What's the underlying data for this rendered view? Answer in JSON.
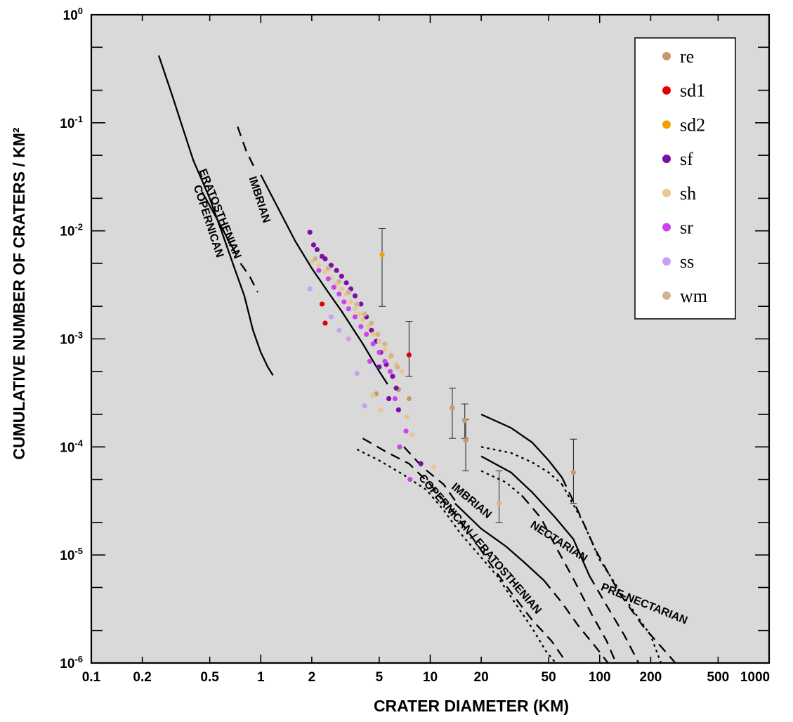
{
  "chart_data": {
    "type": "scatter",
    "xlabel": "CRATER DIAMETER (KM)",
    "ylabel": "CUMULATIVE NUMBER OF CRATERS / KM²",
    "x_scale": "log",
    "y_scale": "log",
    "xlim": [
      0.1,
      1000
    ],
    "ylim": [
      1e-06,
      1
    ],
    "x_ticks": [
      {
        "value": 0.1,
        "label": "0.1"
      },
      {
        "value": 0.2,
        "label": "0.2"
      },
      {
        "value": 0.5,
        "label": "0.5"
      },
      {
        "value": 1,
        "label": "1"
      },
      {
        "value": 2,
        "label": "2"
      },
      {
        "value": 5,
        "label": "5"
      },
      {
        "value": 10,
        "label": "10"
      },
      {
        "value": 20,
        "label": "20"
      },
      {
        "value": 50,
        "label": "50"
      },
      {
        "value": 100,
        "label": "100"
      },
      {
        "value": 200,
        "label": "200"
      },
      {
        "value": 500,
        "label": "500"
      },
      {
        "value": 1000,
        "label": "1000"
      }
    ],
    "y_ticks": [
      {
        "value": 1,
        "base": "10",
        "exp": "0"
      },
      {
        "value": 0.1,
        "base": "10",
        "exp": "-1"
      },
      {
        "value": 0.01,
        "base": "10",
        "exp": "-2"
      },
      {
        "value": 0.001,
        "base": "10",
        "exp": "-3"
      },
      {
        "value": 0.0001,
        "base": "10",
        "exp": "-4"
      },
      {
        "value": 1e-05,
        "base": "10",
        "exp": "-5"
      },
      {
        "value": 1e-06,
        "base": "10",
        "exp": "-6"
      }
    ],
    "grid": false,
    "legend_position": "top-right",
    "plot_background": "#d9d9d9",
    "series": [
      {
        "name": "re",
        "color": "#c49a6c",
        "points": [
          {
            "x": 13.5,
            "y": 0.00023,
            "lo": 0.00012,
            "hi": 0.00035
          },
          {
            "x": 16,
            "y": 0.000175,
            "lo": 0.00012,
            "hi": 0.00025
          },
          {
            "x": 16.2,
            "y": 0.000115,
            "lo": 6e-05,
            "hi": 0.00018
          },
          {
            "x": 70,
            "y": 5.8e-05,
            "lo": 3e-05,
            "hi": 0.000118
          },
          {
            "x": 4.8,
            "y": 0.00031
          },
          {
            "x": 6.5,
            "y": 0.00034
          },
          {
            "x": 7.5,
            "y": 0.00028
          }
        ]
      },
      {
        "name": "sd1",
        "color": "#e00000",
        "points": [
          {
            "x": 2.3,
            "y": 0.0021
          },
          {
            "x": 2.4,
            "y": 0.0014
          },
          {
            "x": 7.5,
            "y": 0.00071,
            "lo": 0.00045,
            "hi": 0.00145
          }
        ]
      },
      {
        "name": "sd2",
        "color": "#f5a000",
        "points": [
          {
            "x": 5.2,
            "y": 0.006,
            "lo": 0.002,
            "hi": 0.0105
          }
        ]
      },
      {
        "name": "sf",
        "color": "#7b0ea8",
        "points": [
          {
            "x": 1.95,
            "y": 0.0097
          },
          {
            "x": 2.05,
            "y": 0.0074
          },
          {
            "x": 2.15,
            "y": 0.0067
          },
          {
            "x": 2.3,
            "y": 0.0058
          },
          {
            "x": 2.4,
            "y": 0.0055
          },
          {
            "x": 2.6,
            "y": 0.0048
          },
          {
            "x": 2.8,
            "y": 0.0043
          },
          {
            "x": 3.0,
            "y": 0.0038
          },
          {
            "x": 3.2,
            "y": 0.0033
          },
          {
            "x": 3.4,
            "y": 0.0029
          },
          {
            "x": 3.6,
            "y": 0.0025
          },
          {
            "x": 3.9,
            "y": 0.0021
          },
          {
            "x": 4.2,
            "y": 0.0016
          },
          {
            "x": 4.5,
            "y": 0.0012
          },
          {
            "x": 4.8,
            "y": 0.00095
          },
          {
            "x": 5.1,
            "y": 0.00075
          },
          {
            "x": 5.5,
            "y": 0.00058
          },
          {
            "x": 6.0,
            "y": 0.00045
          },
          {
            "x": 6.3,
            "y": 0.00035
          },
          {
            "x": 5.0,
            "y": 0.00055
          },
          {
            "x": 5.7,
            "y": 0.00028
          },
          {
            "x": 6.5,
            "y": 0.00022
          },
          {
            "x": 8.8,
            "y": 7e-05
          }
        ]
      },
      {
        "name": "sh",
        "color": "#e8c88e",
        "points": [
          {
            "x": 2.0,
            "y": 0.0052
          },
          {
            "x": 2.2,
            "y": 0.0048
          },
          {
            "x": 2.4,
            "y": 0.0042
          },
          {
            "x": 2.6,
            "y": 0.0037
          },
          {
            "x": 2.8,
            "y": 0.0032
          },
          {
            "x": 3.0,
            "y": 0.0029
          },
          {
            "x": 3.2,
            "y": 0.0026
          },
          {
            "x": 3.4,
            "y": 0.0022
          },
          {
            "x": 3.6,
            "y": 0.0019
          },
          {
            "x": 3.8,
            "y": 0.0017
          },
          {
            "x": 4.0,
            "y": 0.0015
          },
          {
            "x": 4.3,
            "y": 0.0013
          },
          {
            "x": 4.6,
            "y": 0.0011
          },
          {
            "x": 5.0,
            "y": 0.00095
          },
          {
            "x": 5.4,
            "y": 0.0008
          },
          {
            "x": 5.8,
            "y": 0.00068
          },
          {
            "x": 6.3,
            "y": 0.00058
          },
          {
            "x": 6.8,
            "y": 0.0005
          },
          {
            "x": 7.3,
            "y": 0.00019
          },
          {
            "x": 7.8,
            "y": 0.00013
          },
          {
            "x": 10.5,
            "y": 6.5e-05
          },
          {
            "x": 5.1,
            "y": 0.00022
          },
          {
            "x": 4.6,
            "y": 0.0003
          }
        ]
      },
      {
        "name": "sr",
        "color": "#cc44ee",
        "points": [
          {
            "x": 2.2,
            "y": 0.0043
          },
          {
            "x": 2.5,
            "y": 0.0036
          },
          {
            "x": 2.7,
            "y": 0.003
          },
          {
            "x": 2.9,
            "y": 0.0026
          },
          {
            "x": 3.1,
            "y": 0.0022
          },
          {
            "x": 3.3,
            "y": 0.0019
          },
          {
            "x": 3.6,
            "y": 0.0016
          },
          {
            "x": 3.9,
            "y": 0.0013
          },
          {
            "x": 4.2,
            "y": 0.0011
          },
          {
            "x": 4.6,
            "y": 0.0009
          },
          {
            "x": 5.0,
            "y": 0.00075
          },
          {
            "x": 5.4,
            "y": 0.00062
          },
          {
            "x": 5.8,
            "y": 0.0005
          },
          {
            "x": 6.2,
            "y": 0.00028
          },
          {
            "x": 6.6,
            "y": 0.0001
          },
          {
            "x": 7.2,
            "y": 0.00014
          },
          {
            "x": 7.6,
            "y": 5e-05
          },
          {
            "x": 4.4,
            "y": 0.00062
          }
        ]
      },
      {
        "name": "ss",
        "color": "#c9a0f5",
        "points": [
          {
            "x": 1.95,
            "y": 0.0029
          },
          {
            "x": 2.6,
            "y": 0.0016
          },
          {
            "x": 2.9,
            "y": 0.0012
          },
          {
            "x": 3.3,
            "y": 0.001
          },
          {
            "x": 3.7,
            "y": 0.00048
          },
          {
            "x": 4.1,
            "y": 0.00024
          }
        ]
      },
      {
        "name": "wm",
        "color": "#d1b48e",
        "points": [
          {
            "x": 2.1,
            "y": 0.0055
          },
          {
            "x": 2.5,
            "y": 0.0045
          },
          {
            "x": 2.9,
            "y": 0.0034
          },
          {
            "x": 3.3,
            "y": 0.0027
          },
          {
            "x": 3.7,
            "y": 0.0021
          },
          {
            "x": 4.1,
            "y": 0.0017
          },
          {
            "x": 4.5,
            "y": 0.0014
          },
          {
            "x": 4.9,
            "y": 0.0011
          },
          {
            "x": 5.4,
            "y": 0.0009
          },
          {
            "x": 5.9,
            "y": 0.0007
          },
          {
            "x": 6.4,
            "y": 0.00055
          },
          {
            "x": 25.5,
            "y": 3e-05,
            "lo": 2e-05,
            "hi": 6e-05
          }
        ]
      }
    ],
    "reference_curves": [
      {
        "name": "COPERNICAN",
        "style": "solid",
        "points": [
          [
            0.25,
            0.42
          ],
          [
            0.3,
            0.18
          ],
          [
            0.35,
            0.085
          ],
          [
            0.4,
            0.045
          ],
          [
            0.5,
            0.02
          ],
          [
            0.6,
            0.009
          ],
          [
            0.7,
            0.0045
          ],
          [
            0.8,
            0.0025
          ],
          [
            0.9,
            0.0012
          ],
          [
            1.0,
            0.00075
          ],
          [
            1.1,
            0.00055
          ],
          [
            1.18,
            0.00046
          ]
        ]
      },
      {
        "name": "ERATOSTHENIAN",
        "style": "solid",
        "points": [
          [
            0.45,
            0.023
          ],
          [
            0.55,
            0.013
          ],
          [
            0.65,
            0.008
          ],
          [
            0.72,
            0.006
          ]
        ]
      },
      {
        "name": "ERATOSTHENIAN",
        "style": "dashed",
        "points": [
          [
            0.76,
            0.005
          ],
          [
            0.86,
            0.0038
          ],
          [
            0.96,
            0.0027
          ]
        ]
      },
      {
        "name": "IMBRIAN",
        "style": "dashed",
        "points": [
          [
            0.73,
            0.092
          ],
          [
            0.82,
            0.055
          ],
          [
            0.92,
            0.038
          ]
        ]
      },
      {
        "name": "IMBRIAN",
        "style": "solid",
        "points": [
          [
            1.0,
            0.033
          ],
          [
            1.3,
            0.015
          ],
          [
            1.6,
            0.008
          ],
          [
            2.0,
            0.0045
          ],
          [
            2.5,
            0.0027
          ],
          [
            3.0,
            0.0018
          ],
          [
            4.0,
            0.0009
          ],
          [
            5.0,
            0.0005
          ],
          [
            5.6,
            0.00038
          ]
        ]
      },
      {
        "name": "PRE-NECTARIAN",
        "style": "solid",
        "points": [
          [
            20,
            0.0002
          ],
          [
            30,
            0.00015
          ],
          [
            40,
            0.00011
          ],
          [
            50,
            7.5e-05
          ],
          [
            60,
            5.2e-05
          ]
        ]
      },
      {
        "name": "PRE-NECTARIAN",
        "style": "dashed",
        "points": [
          [
            60,
            5.2e-05
          ],
          [
            75,
            2.5e-05
          ],
          [
            95,
            1.1e-05
          ],
          [
            130,
            4.5e-06
          ],
          [
            180,
            2.2e-06
          ],
          [
            280,
            1e-06
          ]
        ]
      },
      {
        "name": "NECTARIAN",
        "style": "dotted",
        "points": [
          [
            20,
            0.0001
          ],
          [
            30,
            8.8e-05
          ],
          [
            40,
            7.2e-05
          ],
          [
            50,
            5.8e-05
          ],
          [
            60,
            4.5e-05
          ]
        ]
      },
      {
        "name": "NECTARIAN",
        "style": "dotted",
        "points": [
          [
            60,
            4.5e-05
          ],
          [
            80,
            2e-05
          ],
          [
            100,
            9e-06
          ],
          [
            140,
            4e-06
          ],
          [
            200,
            1.8e-06
          ],
          [
            230,
            1e-06
          ]
        ]
      },
      {
        "name": "NECTARIAN",
        "style": "solid",
        "points": [
          [
            20,
            8.2e-05
          ],
          [
            30,
            5.8e-05
          ],
          [
            40,
            3.8e-05
          ],
          [
            55,
            2.2e-05
          ],
          [
            70,
            1.4e-05
          ],
          [
            87,
            6.4e-06
          ]
        ]
      },
      {
        "name": "NECTARIAN",
        "style": "dashed",
        "points": [
          [
            87,
            6.4e-06
          ],
          [
            110,
            3.4e-06
          ],
          [
            140,
            1.8e-06
          ],
          [
            170,
            1e-06
          ]
        ]
      },
      {
        "name": "IMBRIAN",
        "style": "dotted",
        "points": [
          [
            20,
            6e-05
          ],
          [
            28,
            4.7e-05
          ],
          [
            35,
            3.5e-05
          ]
        ]
      },
      {
        "name": "IMBRIAN",
        "style": "dashed",
        "points": [
          [
            35,
            3.5e-05
          ],
          [
            45,
            2.2e-05
          ],
          [
            55,
            1.2e-05
          ],
          [
            70,
            6e-06
          ],
          [
            90,
            2.8e-06
          ],
          [
            110,
            1.6e-06
          ],
          [
            125,
            1e-06
          ]
        ]
      },
      {
        "name": "IMBRIAN",
        "style": "dashed",
        "points": [
          [
            7,
            0.0001
          ],
          [
            9,
            6.5e-05
          ],
          [
            12,
            4.5e-05
          ],
          [
            14,
            3.2e-05
          ]
        ]
      },
      {
        "name": "IMBRIAN",
        "style": "solid",
        "points": [
          [
            14,
            3e-05
          ],
          [
            20,
            1.75e-05
          ],
          [
            28,
            1.2e-05
          ],
          [
            36,
            8.5e-06
          ],
          [
            47,
            5.8e-06
          ]
        ]
      },
      {
        "name": "IMBRIAN",
        "style": "dashed",
        "points": [
          [
            47,
            5.8e-06
          ],
          [
            60,
            3.6e-06
          ],
          [
            75,
            2.2e-06
          ],
          [
            95,
            1.4e-06
          ],
          [
            112,
            1e-06
          ]
        ]
      },
      {
        "name": "COPERNICAN / ERATOSTHENIAN",
        "style": "dashed",
        "points": [
          [
            4.0,
            0.00012
          ],
          [
            5.5,
            9e-05
          ],
          [
            7.5,
            7e-05
          ],
          [
            10,
            4.5e-05
          ],
          [
            14,
            2.4e-05
          ],
          [
            18,
            1.4e-05
          ],
          [
            23,
            8e-06
          ],
          [
            30,
            4.5e-06
          ],
          [
            40,
            2.5e-06
          ],
          [
            52,
            1.6e-06
          ],
          [
            64,
            1e-06
          ]
        ]
      },
      {
        "name": "COPERNICAN / ERATOSTHENIAN",
        "style": "dotted",
        "points": [
          [
            3.7,
            9.5e-05
          ],
          [
            5,
            7.5e-05
          ],
          [
            7,
            5.5e-05
          ],
          [
            9.5,
            4e-05
          ],
          [
            12,
            2.6e-05
          ],
          [
            15,
            1.6e-05
          ],
          [
            20,
            9.5e-06
          ],
          [
            25,
            6.3e-06
          ],
          [
            32,
            3.5e-06
          ],
          [
            40,
            2.1e-06
          ],
          [
            48,
            1.3e-06
          ],
          [
            55,
            1e-06
          ]
        ]
      }
    ],
    "curve_labels": [
      {
        "text": "COPERNICAN",
        "x": 0.47,
        "y": 0.012,
        "angle": 72
      },
      {
        "text": "ERATOSTHENIAN",
        "x": 0.55,
        "y": 0.014,
        "angle": 68
      },
      {
        "text": "IMBRIAN",
        "x": 0.94,
        "y": 0.019,
        "angle": 72
      },
      {
        "text": "IMBRIAN",
        "x": 17,
        "y": 3e-05,
        "angle": 40
      },
      {
        "text": "COPERNICAN / ERATOSTHENIAN",
        "x": 19,
        "y": 1.2e-05,
        "angle": 49
      },
      {
        "text": "NECTARIAN",
        "x": 56,
        "y": 1.25e-05,
        "angle": 33
      },
      {
        "text": "PRE-NECTARIAN",
        "x": 180,
        "y": 3.3e-06,
        "angle": 22
      }
    ]
  }
}
